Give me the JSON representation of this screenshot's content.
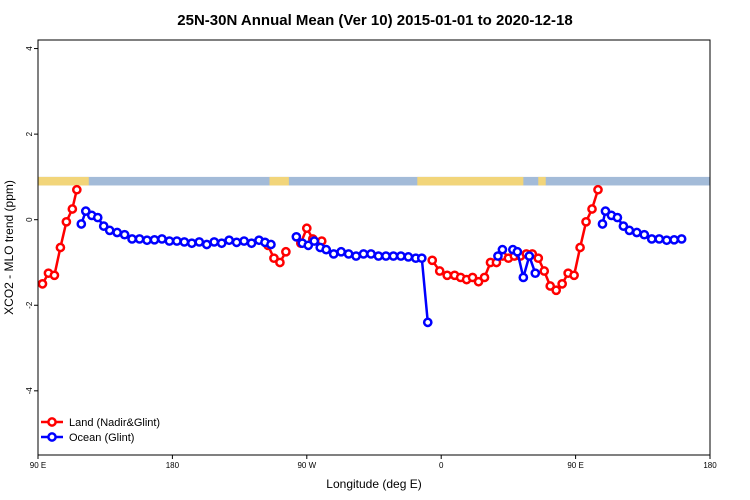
{
  "chart_data": {
    "type": "line",
    "title": "25N-30N Annual Mean (Ver 10)   2015-01-01 to 2020-12-18",
    "xlabel": "Longitude (deg E)",
    "ylabel": "XCO2 - MLO trend (ppm)",
    "xlim": [
      90,
      540
    ],
    "ylim": [
      -5.5,
      4.2
    ],
    "x_ticks": [
      {
        "value": 90,
        "label": "90 E"
      },
      {
        "value": 180,
        "label": "180"
      },
      {
        "value": 270,
        "label": "90 W"
      },
      {
        "value": 360,
        "label": "0"
      },
      {
        "value": 450,
        "label": "90 E"
      },
      {
        "value": 540,
        "label": "180"
      }
    ],
    "y_ticks": [
      -4,
      -2,
      0,
      2,
      4
    ],
    "land_sea_band": {
      "y_range": [
        0.8,
        1.0
      ],
      "ocean_color": "#a3bbd8",
      "land_color": "#f2d57a",
      "land_spans": [
        [
          90,
          124
        ],
        [
          245,
          258
        ],
        [
          344,
          415
        ],
        [
          425,
          430
        ]
      ]
    },
    "legend_position": "bottom-left",
    "series": [
      {
        "name": "Land (Nadir&Glint)",
        "color": "#ff0000",
        "segments": [
          [
            [
              93,
              -1.5
            ],
            [
              97,
              -1.25
            ],
            [
              101,
              -1.3
            ],
            [
              105,
              -0.65
            ],
            [
              109,
              -0.05
            ],
            [
              113,
              0.25
            ],
            [
              116,
              0.7
            ]
          ],
          [
            [
              244,
              -0.6
            ],
            [
              248,
              -0.9
            ],
            [
              252,
              -1.0
            ],
            [
              256,
              -0.75
            ]
          ],
          [
            [
              266,
              -0.55
            ],
            [
              270,
              -0.2
            ],
            [
              274,
              -0.45
            ],
            [
              280,
              -0.5
            ]
          ],
          [
            [
              354,
              -0.95
            ],
            [
              359,
              -1.2
            ],
            [
              364,
              -1.3
            ],
            [
              369,
              -1.3
            ],
            [
              373,
              -1.35
            ],
            [
              377,
              -1.4
            ],
            [
              381,
              -1.35
            ],
            [
              385,
              -1.45
            ],
            [
              389,
              -1.35
            ],
            [
              393,
              -1.0
            ],
            [
              397,
              -1.0
            ],
            [
              401,
              -0.85
            ],
            [
              405,
              -0.9
            ],
            [
              409,
              -0.85
            ],
            [
              413,
              -0.85
            ],
            [
              417,
              -0.8
            ],
            [
              421,
              -0.8
            ],
            [
              425,
              -0.9
            ],
            [
              429,
              -1.2
            ],
            [
              433,
              -1.55
            ],
            [
              437,
              -1.65
            ],
            [
              441,
              -1.5
            ],
            [
              445,
              -1.25
            ],
            [
              449,
              -1.3
            ],
            [
              453,
              -0.65
            ],
            [
              457,
              -0.05
            ],
            [
              461,
              0.25
            ],
            [
              465,
              0.7
            ]
          ]
        ]
      },
      {
        "name": "Ocean (Glint)",
        "color": "#0000ff",
        "segments": [
          [
            [
              119,
              -0.1
            ],
            [
              122,
              0.2
            ],
            [
              126,
              0.1
            ],
            [
              130,
              0.05
            ],
            [
              134,
              -0.15
            ],
            [
              138,
              -0.25
            ],
            [
              143,
              -0.3
            ],
            [
              148,
              -0.35
            ],
            [
              153,
              -0.45
            ],
            [
              158,
              -0.45
            ],
            [
              163,
              -0.48
            ],
            [
              168,
              -0.47
            ],
            [
              173,
              -0.45
            ],
            [
              178,
              -0.5
            ],
            [
              183,
              -0.5
            ],
            [
              188,
              -0.52
            ],
            [
              193,
              -0.55
            ],
            [
              198,
              -0.52
            ],
            [
              203,
              -0.58
            ],
            [
              208,
              -0.52
            ],
            [
              213,
              -0.55
            ],
            [
              218,
              -0.48
            ],
            [
              223,
              -0.53
            ],
            [
              228,
              -0.5
            ],
            [
              233,
              -0.55
            ],
            [
              238,
              -0.48
            ],
            [
              242,
              -0.53
            ],
            [
              246,
              -0.58
            ]
          ],
          [
            [
              263,
              -0.4
            ],
            [
              267,
              -0.55
            ],
            [
              271,
              -0.6
            ],
            [
              275,
              -0.5
            ],
            [
              279,
              -0.65
            ],
            [
              283,
              -0.7
            ],
            [
              288,
              -0.8
            ],
            [
              293,
              -0.75
            ],
            [
              298,
              -0.8
            ],
            [
              303,
              -0.85
            ],
            [
              308,
              -0.8
            ],
            [
              313,
              -0.8
            ],
            [
              318,
              -0.85
            ],
            [
              323,
              -0.85
            ],
            [
              328,
              -0.85
            ],
            [
              333,
              -0.85
            ],
            [
              338,
              -0.87
            ],
            [
              343,
              -0.9
            ],
            [
              347,
              -0.9
            ],
            [
              351,
              -2.4
            ]
          ],
          [
            [
              398,
              -0.85
            ],
            [
              401,
              -0.7
            ]
          ],
          [
            [
              408,
              -0.7
            ],
            [
              411,
              -0.75
            ],
            [
              415,
              -1.35
            ],
            [
              419,
              -0.85
            ],
            [
              423,
              -1.25
            ]
          ],
          [
            [
              468,
              -0.1
            ],
            [
              470,
              0.2
            ],
            [
              474,
              0.1
            ],
            [
              478,
              0.05
            ],
            [
              482,
              -0.15
            ],
            [
              486,
              -0.25
            ],
            [
              491,
              -0.3
            ],
            [
              496,
              -0.35
            ],
            [
              501,
              -0.45
            ],
            [
              506,
              -0.45
            ],
            [
              511,
              -0.48
            ],
            [
              516,
              -0.47
            ],
            [
              521,
              -0.45
            ]
          ]
        ]
      }
    ]
  }
}
